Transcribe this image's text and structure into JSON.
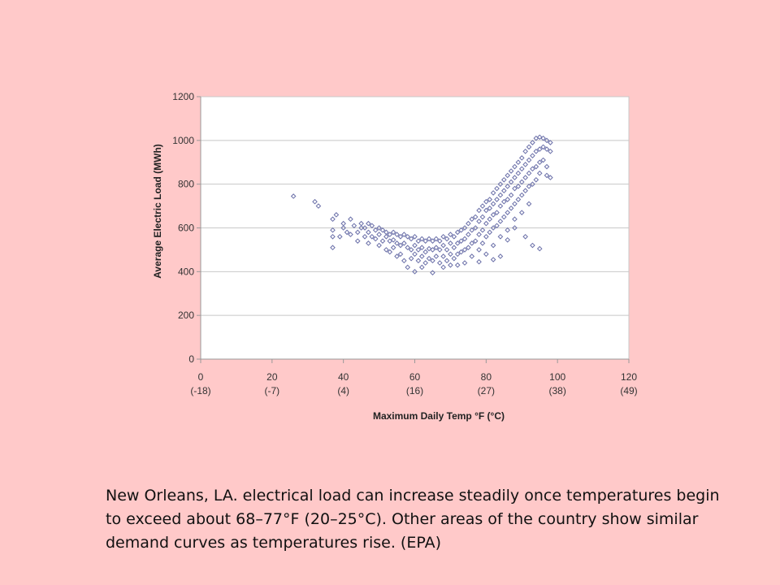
{
  "chart_data": {
    "type": "scatter",
    "title": "",
    "xlabel": "Maximum Daily Temp °F (°C)",
    "ylabel": "Average Electric Load (MWh)",
    "xlim": [
      0,
      120
    ],
    "ylim": [
      0,
      1200
    ],
    "x_ticks": [
      0,
      20,
      40,
      60,
      80,
      100,
      120
    ],
    "x_tick_labels": [
      "0",
      "20",
      "40",
      "60",
      "80",
      "100",
      "120"
    ],
    "x_tick_sublabels": [
      "(-18)",
      "(-7)",
      "(4)",
      "(16)",
      "(27)",
      "(38)",
      "(49)"
    ],
    "y_ticks": [
      0,
      200,
      400,
      600,
      800,
      1000,
      1200
    ],
    "y_tick_labels": [
      "0",
      "200",
      "400",
      "600",
      "800",
      "1000",
      "1200"
    ],
    "grid": "horizontal",
    "series": [
      {
        "color": "#6a6fa8",
        "points": [
          [
            26,
            745
          ],
          [
            32,
            720
          ],
          [
            33,
            700
          ],
          [
            37,
            640
          ],
          [
            37,
            590
          ],
          [
            37,
            560
          ],
          [
            37,
            510
          ],
          [
            38,
            660
          ],
          [
            39,
            560
          ],
          [
            40,
            620
          ],
          [
            40,
            600
          ],
          [
            41,
            580
          ],
          [
            42,
            640
          ],
          [
            42,
            570
          ],
          [
            43,
            610
          ],
          [
            44,
            580
          ],
          [
            44,
            540
          ],
          [
            45,
            620
          ],
          [
            45,
            600
          ],
          [
            46,
            600
          ],
          [
            46,
            560
          ],
          [
            47,
            620
          ],
          [
            47,
            580
          ],
          [
            47,
            530
          ],
          [
            48,
            610
          ],
          [
            48,
            560
          ],
          [
            49,
            590
          ],
          [
            49,
            550
          ],
          [
            50,
            600
          ],
          [
            50,
            570
          ],
          [
            50,
            520
          ],
          [
            51,
            590
          ],
          [
            51,
            540
          ],
          [
            52,
            580
          ],
          [
            52,
            560
          ],
          [
            52,
            500
          ],
          [
            53,
            570
          ],
          [
            53,
            540
          ],
          [
            53,
            490
          ],
          [
            54,
            580
          ],
          [
            54,
            545
          ],
          [
            54,
            510
          ],
          [
            55,
            570
          ],
          [
            55,
            530
          ],
          [
            55,
            470
          ],
          [
            56,
            560
          ],
          [
            56,
            520
          ],
          [
            56,
            480
          ],
          [
            57,
            570
          ],
          [
            57,
            530
          ],
          [
            57,
            450
          ],
          [
            58,
            560
          ],
          [
            58,
            510
          ],
          [
            58,
            420
          ],
          [
            59,
            550
          ],
          [
            59,
            500
          ],
          [
            59,
            460
          ],
          [
            60,
            560
          ],
          [
            60,
            520
          ],
          [
            60,
            480
          ],
          [
            60,
            400
          ],
          [
            61,
            540
          ],
          [
            61,
            500
          ],
          [
            61,
            450
          ],
          [
            62,
            550
          ],
          [
            62,
            510
          ],
          [
            62,
            470
          ],
          [
            62,
            420
          ],
          [
            63,
            540
          ],
          [
            63,
            490
          ],
          [
            63,
            440
          ],
          [
            64,
            550
          ],
          [
            64,
            505
          ],
          [
            64,
            460
          ],
          [
            65,
            540
          ],
          [
            65,
            500
          ],
          [
            65,
            450
          ],
          [
            65,
            395
          ],
          [
            66,
            550
          ],
          [
            66,
            510
          ],
          [
            66,
            470
          ],
          [
            67,
            540
          ],
          [
            67,
            500
          ],
          [
            67,
            440
          ],
          [
            68,
            560
          ],
          [
            68,
            520
          ],
          [
            68,
            470
          ],
          [
            68,
            420
          ],
          [
            69,
            550
          ],
          [
            69,
            500
          ],
          [
            69,
            450
          ],
          [
            70,
            570
          ],
          [
            70,
            530
          ],
          [
            70,
            480
          ],
          [
            70,
            430
          ],
          [
            71,
            560
          ],
          [
            71,
            510
          ],
          [
            71,
            460
          ],
          [
            72,
            580
          ],
          [
            72,
            530
          ],
          [
            72,
            480
          ],
          [
            72,
            430
          ],
          [
            73,
            590
          ],
          [
            73,
            540
          ],
          [
            73,
            490
          ],
          [
            74,
            600
          ],
          [
            74,
            550
          ],
          [
            74,
            500
          ],
          [
            74,
            440
          ],
          [
            75,
            620
          ],
          [
            75,
            570
          ],
          [
            75,
            510
          ],
          [
            76,
            640
          ],
          [
            76,
            590
          ],
          [
            76,
            530
          ],
          [
            76,
            470
          ],
          [
            77,
            650
          ],
          [
            77,
            600
          ],
          [
            77,
            540
          ],
          [
            78,
            680
          ],
          [
            78,
            630
          ],
          [
            78,
            570
          ],
          [
            78,
            500
          ],
          [
            79,
            700
          ],
          [
            79,
            650
          ],
          [
            79,
            590
          ],
          [
            79,
            530
          ],
          [
            80,
            720
          ],
          [
            80,
            680
          ],
          [
            80,
            620
          ],
          [
            80,
            560
          ],
          [
            80,
            480
          ],
          [
            81,
            730
          ],
          [
            81,
            690
          ],
          [
            81,
            640
          ],
          [
            81,
            580
          ],
          [
            82,
            760
          ],
          [
            82,
            710
          ],
          [
            82,
            660
          ],
          [
            82,
            600
          ],
          [
            82,
            520
          ],
          [
            83,
            780
          ],
          [
            83,
            730
          ],
          [
            83,
            670
          ],
          [
            83,
            610
          ],
          [
            84,
            800
          ],
          [
            84,
            750
          ],
          [
            84,
            700
          ],
          [
            84,
            630
          ],
          [
            84,
            560
          ],
          [
            85,
            820
          ],
          [
            85,
            770
          ],
          [
            85,
            720
          ],
          [
            85,
            650
          ],
          [
            86,
            840
          ],
          [
            86,
            790
          ],
          [
            86,
            730
          ],
          [
            86,
            670
          ],
          [
            86,
            590
          ],
          [
            87,
            860
          ],
          [
            87,
            810
          ],
          [
            87,
            750
          ],
          [
            87,
            690
          ],
          [
            88,
            880
          ],
          [
            88,
            830
          ],
          [
            88,
            780
          ],
          [
            88,
            710
          ],
          [
            88,
            640
          ],
          [
            89,
            900
          ],
          [
            89,
            850
          ],
          [
            89,
            790
          ],
          [
            89,
            730
          ],
          [
            90,
            920
          ],
          [
            90,
            870
          ],
          [
            90,
            810
          ],
          [
            90,
            750
          ],
          [
            90,
            670
          ],
          [
            91,
            950
          ],
          [
            91,
            890
          ],
          [
            91,
            830
          ],
          [
            91,
            770
          ],
          [
            92,
            970
          ],
          [
            92,
            910
          ],
          [
            92,
            850
          ],
          [
            92,
            790
          ],
          [
            92,
            710
          ],
          [
            93,
            990
          ],
          [
            93,
            930
          ],
          [
            93,
            870
          ],
          [
            93,
            800
          ],
          [
            94,
            1010
          ],
          [
            94,
            950
          ],
          [
            94,
            880
          ],
          [
            94,
            820
          ],
          [
            95,
            1015
          ],
          [
            95,
            960
          ],
          [
            95,
            900
          ],
          [
            95,
            850
          ],
          [
            96,
            1010
          ],
          [
            96,
            970
          ],
          [
            96,
            910
          ],
          [
            97,
            1000
          ],
          [
            97,
            960
          ],
          [
            97,
            880
          ],
          [
            97,
            840
          ],
          [
            98,
            990
          ],
          [
            98,
            950
          ],
          [
            98,
            830
          ],
          [
            88,
            600
          ],
          [
            91,
            560
          ],
          [
            93,
            520
          ],
          [
            95,
            505
          ],
          [
            86,
            545
          ],
          [
            84,
            470
          ],
          [
            78,
            445
          ],
          [
            82,
            455
          ]
        ]
      }
    ]
  },
  "caption": "New Orleans, LA. electrical load can increase steadily once temperatures begin to exceed about 68–77°F (20–25°C). Other areas of the country show similar demand curves as temperatures rise. (EPA)"
}
